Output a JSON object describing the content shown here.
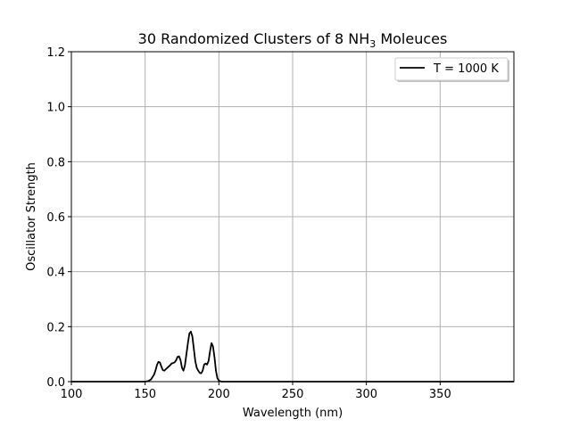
{
  "chart_data": {
    "type": "line",
    "title": "30 Randomized Clusters of 8 NH",
    "title_subscript": "3",
    "title_suffix": " Moleuces",
    "xlabel": "Wavelength (nm)",
    "ylabel": "Oscillator Strength",
    "xlim": [
      100,
      400
    ],
    "ylim": [
      0,
      1.2
    ],
    "xticks": [
      100,
      150,
      200,
      250,
      300,
      350
    ],
    "xtick_labels": [
      "100",
      "150",
      "200",
      "250",
      "300",
      "350"
    ],
    "yticks": [
      0.0,
      0.2,
      0.4,
      0.6,
      0.8,
      1.0,
      1.2
    ],
    "ytick_labels": [
      "0.0",
      "0.2",
      "0.4",
      "0.6",
      "0.8",
      "1.0",
      "1.2"
    ],
    "grid": true,
    "legend_placement": "top-right",
    "series": [
      {
        "name": "T = 1000 K",
        "color": "#000000",
        "x": [
          100,
          150,
          152,
          154,
          156,
          157,
          158,
          159,
          160,
          161,
          162,
          163,
          164,
          165,
          166,
          167,
          168,
          169,
          170,
          171,
          172,
          173,
          174,
          175,
          176,
          177,
          178,
          179,
          180,
          181,
          182,
          183,
          184,
          185,
          186,
          187,
          188,
          189,
          190,
          191,
          192,
          193,
          194,
          195,
          196,
          197,
          198,
          199,
          200,
          201,
          202,
          203,
          205,
          210,
          250,
          300,
          350,
          400
        ],
        "y": [
          0,
          0,
          0.002,
          0.008,
          0.025,
          0.04,
          0.06,
          0.072,
          0.07,
          0.055,
          0.042,
          0.04,
          0.045,
          0.05,
          0.055,
          0.06,
          0.066,
          0.068,
          0.07,
          0.078,
          0.09,
          0.092,
          0.078,
          0.05,
          0.04,
          0.06,
          0.1,
          0.14,
          0.175,
          0.182,
          0.165,
          0.12,
          0.075,
          0.05,
          0.04,
          0.032,
          0.03,
          0.04,
          0.062,
          0.066,
          0.062,
          0.075,
          0.11,
          0.14,
          0.128,
          0.09,
          0.04,
          0.012,
          0.004,
          0.001,
          0,
          0,
          0,
          0,
          0,
          0,
          0,
          0
        ]
      }
    ]
  }
}
